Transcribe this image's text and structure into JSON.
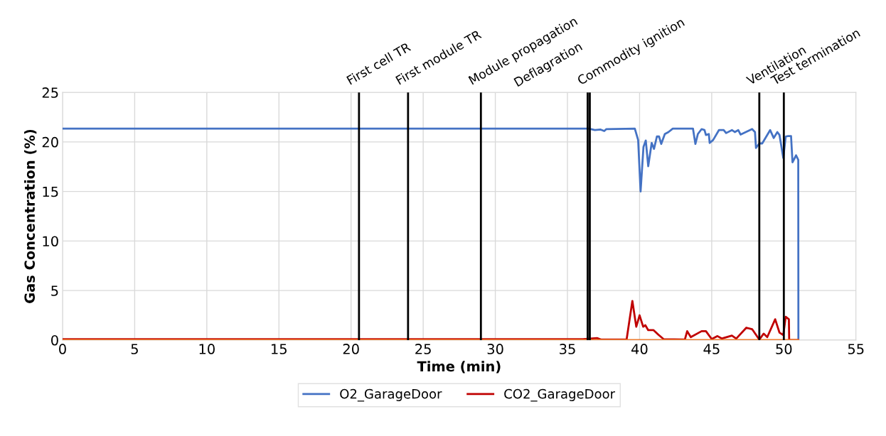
{
  "chart_data": {
    "type": "line",
    "xlabel": "Time (min)",
    "ylabel": "Gas Concentration (%)",
    "xlim": [
      0,
      55
    ],
    "xticks": [
      0,
      5,
      10,
      15,
      20,
      25,
      30,
      35,
      40,
      45,
      50,
      55
    ],
    "ylim": [
      0,
      25
    ],
    "yticks": [
      0,
      5,
      10,
      15,
      20,
      25
    ],
    "grid": true,
    "legend": "bottom",
    "marker": "none",
    "line_style": "solid",
    "series": [
      {
        "name": "O2_GarageDoor",
        "color": "#4472c4",
        "x": [
          0,
          10,
          20,
          30,
          36.07,
          36.48,
          36.9,
          37.3,
          37.55,
          37.7,
          39.67,
          39.9,
          40.07,
          40.27,
          40.43,
          40.6,
          40.84,
          41.0,
          41.2,
          41.35,
          41.5,
          41.75,
          42.0,
          42.3,
          43.7,
          43.87,
          44.04,
          44.3,
          44.5,
          44.6,
          44.8,
          44.86,
          45.1,
          45.5,
          45.83,
          46.0,
          46.4,
          46.6,
          46.84,
          47.0,
          47.8,
          48.0,
          48.07,
          48.3,
          48.5,
          49.05,
          49.3,
          49.55,
          49.7,
          49.96,
          50.13,
          50.3,
          50.5,
          50.6,
          50.85,
          51.0,
          51.01
        ],
        "values": [
          21.35,
          21.35,
          21.35,
          21.35,
          21.35,
          21.35,
          21.2,
          21.25,
          21.1,
          21.3,
          21.35,
          20.2,
          15.0,
          19.5,
          20.15,
          17.55,
          19.9,
          19.3,
          20.55,
          20.55,
          19.8,
          20.8,
          21.0,
          21.35,
          21.35,
          19.8,
          20.8,
          21.3,
          21.2,
          20.7,
          20.8,
          19.9,
          20.2,
          21.2,
          21.2,
          20.9,
          21.2,
          21.0,
          21.2,
          20.75,
          21.3,
          21.0,
          19.4,
          19.85,
          19.85,
          21.2,
          20.4,
          21.0,
          20.7,
          18.4,
          20.55,
          20.6,
          20.6,
          17.95,
          18.65,
          18.2,
          0
        ]
      },
      {
        "name": "CO2_GarageDoor",
        "color": "#c00000",
        "x": [
          0,
          5,
          10,
          15,
          20,
          25,
          30,
          36.07,
          37.05,
          37.35,
          39.1,
          39.5,
          39.77,
          40.0,
          40.25,
          40.4,
          40.6,
          40.97,
          41.3,
          41.66,
          43.14,
          43.3,
          43.55,
          44.3,
          44.6,
          45.0,
          45.4,
          45.7,
          46.4,
          46.7,
          47.4,
          47.8,
          48.3,
          48.6,
          48.85,
          49.4,
          49.7,
          49.96,
          50.13,
          50.35,
          50.37,
          51.0
        ],
        "values": [
          0.1,
          0.1,
          0.1,
          0.1,
          0.1,
          0.1,
          0.1,
          0.1,
          0.2,
          0.05,
          0.05,
          3.95,
          1.35,
          2.5,
          1.35,
          1.5,
          1.0,
          1.0,
          0.55,
          0.1,
          0.05,
          0.9,
          0.3,
          0.9,
          0.9,
          0.1,
          0.4,
          0.15,
          0.45,
          0.15,
          1.25,
          1.1,
          0.05,
          0.65,
          0.3,
          2.1,
          0.75,
          0.5,
          2.35,
          2.1,
          0,
          0
        ]
      },
      {
        "color": "#ed7d31",
        "x": [
          0,
          51.0
        ],
        "values": [
          0,
          0
        ]
      }
    ],
    "ref_lines": [
      {
        "axis": "x",
        "value": 20.55,
        "label": "First cell TR",
        "color": "#000000"
      },
      {
        "axis": "x",
        "value": 23.95,
        "label": "First module TR",
        "color": "#000000"
      },
      {
        "axis": "x",
        "value": 29.0,
        "label": "Module propagation",
        "color": "#000000"
      },
      {
        "axis": "x",
        "value": 36.4,
        "label": "Deflagration",
        "color": "#000000"
      },
      {
        "axis": "x",
        "value": 36.55,
        "label": "Commodity ignition",
        "color": "#000000"
      },
      {
        "axis": "x",
        "value": 48.3,
        "label": "Ventilation",
        "color": "#000000"
      },
      {
        "axis": "x",
        "value": 50.0,
        "label": "Test termination",
        "color": "#000000"
      }
    ]
  }
}
